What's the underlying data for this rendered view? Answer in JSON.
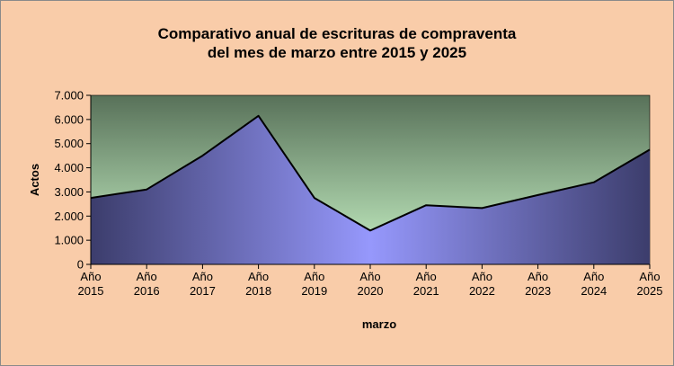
{
  "chart_data": {
    "type": "area",
    "title_lines": [
      "Comparativo anual de escrituras de compraventa",
      "del mes de marzo entre 2015 y 2025"
    ],
    "xlabel": "marzo",
    "ylabel": "Actos",
    "ylim": [
      0,
      7000
    ],
    "yticks": [
      "0",
      "1.000",
      "2.000",
      "3.000",
      "4.000",
      "5.000",
      "6.000",
      "7.000"
    ],
    "categories": [
      [
        "Año",
        "2015"
      ],
      [
        "Año",
        "2016"
      ],
      [
        "Año",
        "2017"
      ],
      [
        "Año",
        "2018"
      ],
      [
        "Año",
        "2019"
      ],
      [
        "Año",
        "2020"
      ],
      [
        "Año",
        "2021"
      ],
      [
        "Año",
        "2022"
      ],
      [
        "Año",
        "2023"
      ],
      [
        "Año",
        "2024"
      ],
      [
        "Año",
        "2025"
      ]
    ],
    "values": [
      2750,
      3100,
      4500,
      6150,
      2750,
      1400,
      2450,
      2330,
      2870,
      3400,
      4750
    ],
    "grid": false,
    "legend": "none",
    "colors": {
      "background": "#f9cca9",
      "plot_top": "#587159",
      "plot_bottom": "#c8f3c6",
      "area_edge": "#3c3d6c",
      "area_center": "#9698fc",
      "line": "#000000"
    }
  }
}
